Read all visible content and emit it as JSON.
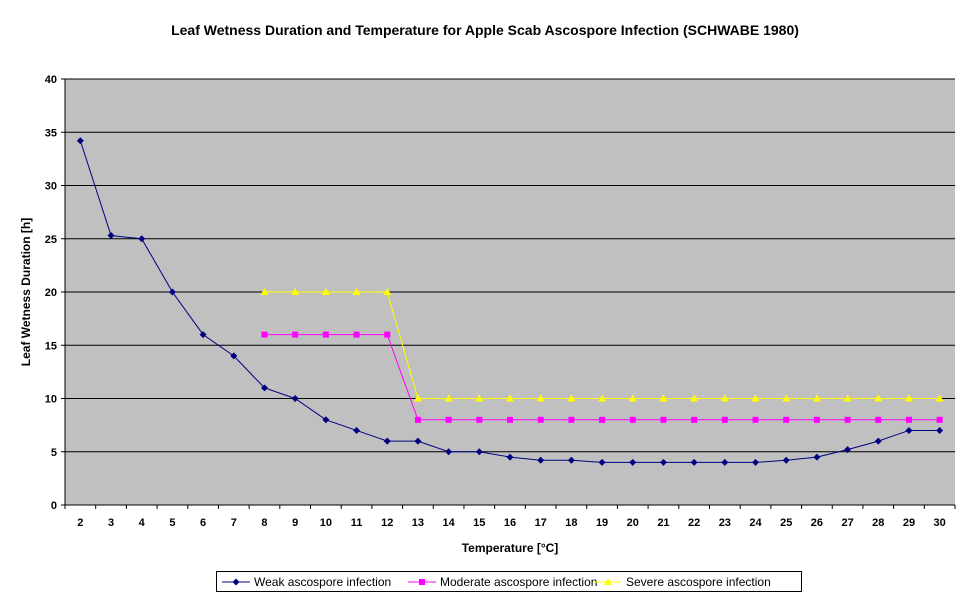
{
  "chart_data": {
    "type": "line",
    "title": "Leaf Wetness Duration and Temperature for Apple Scab Ascospore Infection (SCHWABE 1980)",
    "xlabel": "Temperature [°C]",
    "ylabel": "Leaf Wetness Duration [h]",
    "categories": [
      "2",
      "3",
      "4",
      "5",
      "6",
      "7",
      "8",
      "9",
      "10",
      "11",
      "12",
      "13",
      "14",
      "15",
      "16",
      "17",
      "18",
      "19",
      "20",
      "21",
      "22",
      "23",
      "24",
      "25",
      "26",
      "27",
      "28",
      "29",
      "30"
    ],
    "ylim": [
      0,
      40
    ],
    "yticks": [
      0,
      5,
      10,
      15,
      20,
      25,
      30,
      35,
      40
    ],
    "grid": true,
    "plot_background": "#C0C0C0",
    "legend_position": "bottom",
    "series": [
      {
        "name": "Weak ascospore infection",
        "color": "#000080",
        "marker": "diamond",
        "values": [
          34.2,
          25.3,
          25,
          20,
          16,
          14,
          11,
          10,
          8,
          7,
          6,
          6,
          5,
          5,
          4.5,
          4.2,
          4.2,
          4,
          4,
          4,
          4,
          4,
          4,
          4.2,
          4.5,
          5.2,
          6,
          7,
          7
        ]
      },
      {
        "name": "Moderate ascospore infection",
        "color": "#FF00FF",
        "marker": "square",
        "values": [
          null,
          null,
          null,
          null,
          null,
          null,
          16,
          16,
          16,
          16,
          16,
          8,
          8,
          8,
          8,
          8,
          8,
          8,
          8,
          8,
          8,
          8,
          8,
          8,
          8,
          8,
          8,
          8,
          8
        ]
      },
      {
        "name": "Severe ascospore infection",
        "color": "#FFFF00",
        "marker": "triangle",
        "values": [
          null,
          null,
          null,
          null,
          null,
          null,
          20,
          20,
          20,
          20,
          20,
          10,
          10,
          10,
          10,
          10,
          10,
          10,
          10,
          10,
          10,
          10,
          10,
          10,
          10,
          10,
          10,
          10,
          10
        ]
      }
    ]
  }
}
